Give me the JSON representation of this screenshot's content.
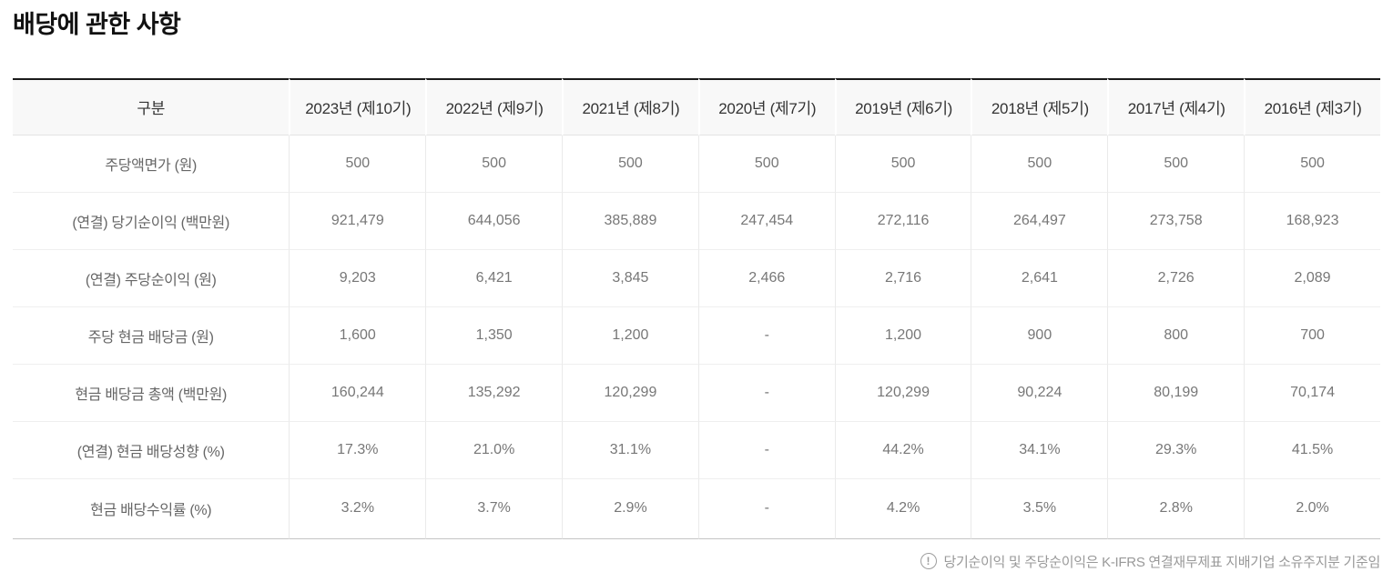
{
  "page": {
    "title": "배당에 관한 사항",
    "footnote": "당기순이익 및 주당순이익은 K-IFRS 연결재무제표 지배기업 소유주지분 기준임"
  },
  "table": {
    "header": [
      "구분",
      "2023년 (제10기)",
      "2022년 (제9기)",
      "2021년 (제8기)",
      "2020년 (제7기)",
      "2019년 (제6기)",
      "2018년 (제5기)",
      "2017년 (제4기)",
      "2016년 (제3기)"
    ],
    "rows": [
      {
        "label": "주당액면가 (원)",
        "values": [
          "500",
          "500",
          "500",
          "500",
          "500",
          "500",
          "500",
          "500"
        ]
      },
      {
        "label": "(연결) 당기순이익 (백만원)",
        "values": [
          "921,479",
          "644,056",
          "385,889",
          "247,454",
          "272,116",
          "264,497",
          "273,758",
          "168,923"
        ]
      },
      {
        "label": "(연결) 주당순이익 (원)",
        "values": [
          "9,203",
          "6,421",
          "3,845",
          "2,466",
          "2,716",
          "2,641",
          "2,726",
          "2,089"
        ]
      },
      {
        "label": "주당 현금 배당금 (원)",
        "values": [
          "1,600",
          "1,350",
          "1,200",
          "-",
          "1,200",
          "900",
          "800",
          "700"
        ]
      },
      {
        "label": "현금 배당금 총액 (백만원)",
        "values": [
          "160,244",
          "135,292",
          "120,299",
          "-",
          "120,299",
          "90,224",
          "80,199",
          "70,174"
        ]
      },
      {
        "label": "(연결) 현금 배당성향 (%)",
        "values": [
          "17.3%",
          "21.0%",
          "31.1%",
          "-",
          "44.2%",
          "34.1%",
          "29.3%",
          "41.5%"
        ]
      },
      {
        "label": "현금 배당수익률 (%)",
        "values": [
          "3.2%",
          "3.7%",
          "2.9%",
          "-",
          "4.2%",
          "3.5%",
          "2.8%",
          "2.0%"
        ]
      }
    ]
  },
  "icons": {
    "footnote_icon": "exclamation-circle",
    "footnote_icon_glyph": "!"
  },
  "colors": {
    "table_top_border": "#1b1b1b",
    "header_background": "#f8f8f8",
    "header_text": "#333333",
    "body_text": "#777777",
    "footnote_text": "#999999"
  }
}
